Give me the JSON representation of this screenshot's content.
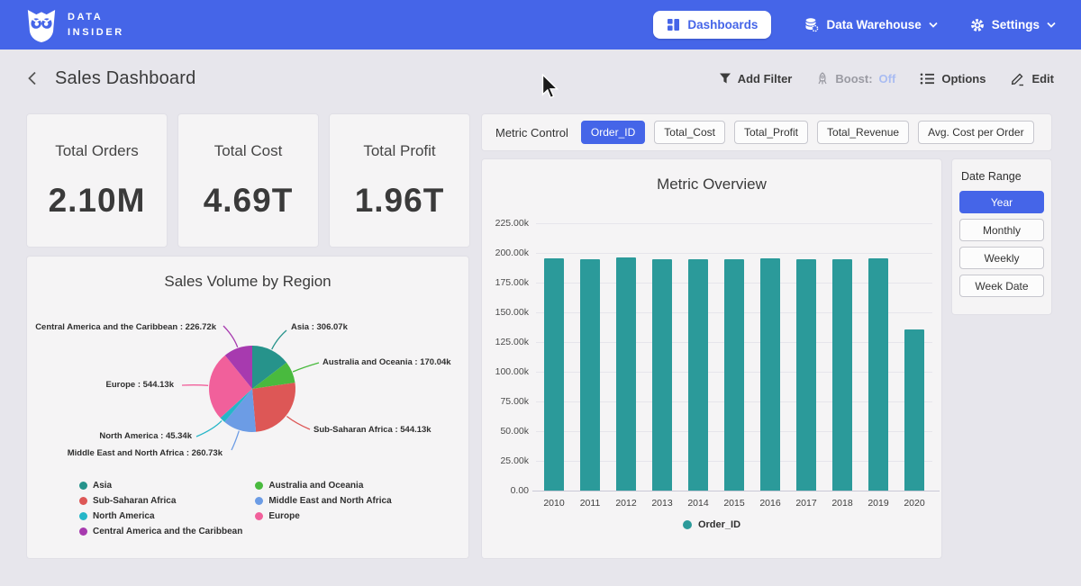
{
  "colors": {
    "accent": "#4565E8",
    "bar_teal": "#2B9A9A"
  },
  "navbar": {
    "brand_line1": "DATA",
    "brand_line2": "INSIDER",
    "dashboards_label": "Dashboards",
    "data_warehouse_label": "Data Warehouse",
    "settings_label": "Settings"
  },
  "header": {
    "title": "Sales Dashboard",
    "add_filter": "Add Filter",
    "boost_label": "Boost:",
    "boost_state": "Off",
    "options": "Options",
    "edit": "Edit"
  },
  "kpis": [
    {
      "label": "Total Orders",
      "value": "2.10M"
    },
    {
      "label": "Total Cost",
      "value": "4.69T"
    },
    {
      "label": "Total Profit",
      "value": "1.96T"
    }
  ],
  "metric_control": {
    "label": "Metric Control",
    "options": [
      "Order_ID",
      "Total_Cost",
      "Total_Profit",
      "Total_Revenue",
      "Avg. Cost per Order"
    ],
    "selected": "Order_ID"
  },
  "date_range": {
    "label": "Date Range",
    "options": [
      "Year",
      "Monthly",
      "Weekly",
      "Week Date"
    ],
    "selected": "Year"
  },
  "chart_data": [
    {
      "type": "pie",
      "title": "Sales Volume by Region",
      "unit": "thousands of orders",
      "slices": [
        {
          "name": "Asia",
          "value_k": 306.07,
          "label": "Asia : 306.07k",
          "color": "#26938B"
        },
        {
          "name": "Australia and Oceania",
          "value_k": 170.04,
          "label": "Australia and Oceania : 170.04k",
          "color": "#49BA3E"
        },
        {
          "name": "Sub-Saharan Africa",
          "value_k": 544.13,
          "label": "Sub-Saharan Africa : 544.13k",
          "color": "#DD5756"
        },
        {
          "name": "Middle East and North Africa",
          "value_k": 260.73,
          "label": "Middle East and North Africa : 260.73k",
          "color": "#6C9CE5"
        },
        {
          "name": "North America",
          "value_k": 45.34,
          "label": "North America : 45.34k",
          "color": "#25B6C8"
        },
        {
          "name": "Europe",
          "value_k": 544.13,
          "label": "Europe : 544.13k",
          "color": "#F1609B"
        },
        {
          "name": "Central America and the Caribbean",
          "value_k": 226.72,
          "label": "Central America and the Caribbean : 226.72k",
          "color": "#A73AAF"
        }
      ],
      "legend_order": [
        0,
        2,
        4,
        6,
        1,
        3,
        5
      ],
      "legend_position": "bottom"
    },
    {
      "type": "bar",
      "title": "Metric Overview",
      "categories": [
        "2010",
        "2011",
        "2012",
        "2013",
        "2014",
        "2015",
        "2016",
        "2017",
        "2018",
        "2019",
        "2020"
      ],
      "series": [
        {
          "name": "Order_ID",
          "color": "#2B9A9A",
          "values_k": [
            195.2,
            195.0,
            195.9,
            194.7,
            194.8,
            194.7,
            195.6,
            195.0,
            194.8,
            195.1,
            135.8
          ]
        }
      ],
      "ylim_k": [
        0,
        225
      ],
      "y_tick_step_k": 25,
      "y_tick_labels": [
        "0.00",
        "25.00k",
        "50.00k",
        "75.00k",
        "100.00k",
        "125.00k",
        "150.00k",
        "175.00k",
        "200.00k",
        "225.00k"
      ],
      "grid": true,
      "legend_position": "bottom"
    }
  ]
}
